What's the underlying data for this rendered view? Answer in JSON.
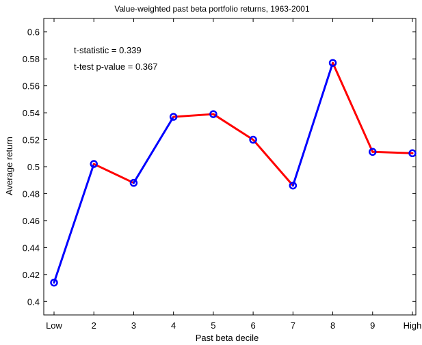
{
  "chart_data": {
    "type": "line",
    "title": "Value-weighted past beta portfolio returns, 1963-2001",
    "xlabel": "Past beta decile",
    "ylabel": "Average return",
    "categories": [
      "Low",
      "2",
      "3",
      "4",
      "5",
      "6",
      "7",
      "8",
      "9",
      "High"
    ],
    "values": [
      0.414,
      0.502,
      0.488,
      0.537,
      0.539,
      0.52,
      0.486,
      0.577,
      0.511,
      0.51
    ],
    "segment_colors": [
      "#0000ff",
      "#ff0000",
      "#0000ff",
      "#ff0000",
      "#ff0000",
      "#ff0000",
      "#0000ff",
      "#ff0000",
      "#ff0000"
    ],
    "marker_color": "#0000ff",
    "ylim": [
      0.39,
      0.61
    ],
    "yticks": [
      "0.4",
      "0.42",
      "0.44",
      "0.46",
      "0.48",
      "0.5",
      "0.52",
      "0.54",
      "0.56",
      "0.58",
      "0.6"
    ],
    "annotations": [
      "t-statistic = 0.339",
      "t-test p-value = 0.367"
    ],
    "grid": false
  }
}
